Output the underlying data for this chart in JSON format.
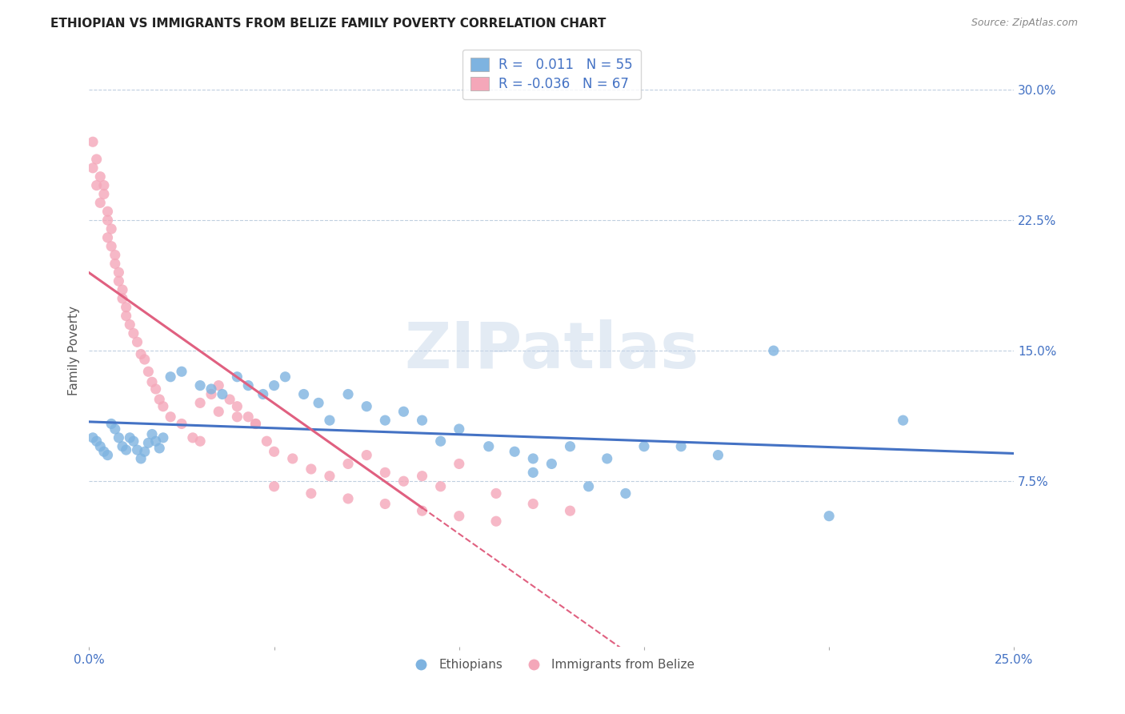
{
  "title": "ETHIOPIAN VS IMMIGRANTS FROM BELIZE FAMILY POVERTY CORRELATION CHART",
  "source": "Source: ZipAtlas.com",
  "ylabel": "Family Poverty",
  "xlim": [
    0.0,
    0.25
  ],
  "ylim": [
    -0.02,
    0.32
  ],
  "ytick_labels_right": [
    "30.0%",
    "22.5%",
    "15.0%",
    "7.5%"
  ],
  "ytick_positions_right": [
    0.3,
    0.225,
    0.15,
    0.075
  ],
  "blue_color": "#7eb3e0",
  "pink_color": "#f4a7b9",
  "blue_line_color": "#4472c4",
  "pink_line_color": "#e06080",
  "r_blue": 0.011,
  "n_blue": 55,
  "r_pink": -0.036,
  "n_pink": 67,
  "watermark": "ZIPatlas",
  "ethiopians_x": [
    0.001,
    0.002,
    0.003,
    0.004,
    0.005,
    0.006,
    0.007,
    0.008,
    0.009,
    0.01,
    0.011,
    0.012,
    0.013,
    0.014,
    0.015,
    0.016,
    0.017,
    0.018,
    0.019,
    0.02,
    0.022,
    0.025,
    0.03,
    0.033,
    0.036,
    0.04,
    0.043,
    0.047,
    0.05,
    0.053,
    0.058,
    0.062,
    0.065,
    0.07,
    0.075,
    0.08,
    0.085,
    0.09,
    0.095,
    0.1,
    0.108,
    0.115,
    0.12,
    0.125,
    0.13,
    0.14,
    0.15,
    0.16,
    0.17,
    0.185,
    0.12,
    0.135,
    0.145,
    0.2,
    0.22
  ],
  "ethiopians_y": [
    0.1,
    0.098,
    0.095,
    0.092,
    0.09,
    0.108,
    0.105,
    0.1,
    0.095,
    0.093,
    0.1,
    0.098,
    0.093,
    0.088,
    0.092,
    0.097,
    0.102,
    0.098,
    0.094,
    0.1,
    0.135,
    0.138,
    0.13,
    0.128,
    0.125,
    0.135,
    0.13,
    0.125,
    0.13,
    0.135,
    0.125,
    0.12,
    0.11,
    0.125,
    0.118,
    0.11,
    0.115,
    0.11,
    0.098,
    0.105,
    0.095,
    0.092,
    0.088,
    0.085,
    0.095,
    0.088,
    0.095,
    0.095,
    0.09,
    0.15,
    0.08,
    0.072,
    0.068,
    0.055,
    0.11
  ],
  "belize_x": [
    0.001,
    0.001,
    0.002,
    0.002,
    0.003,
    0.003,
    0.004,
    0.004,
    0.005,
    0.005,
    0.005,
    0.006,
    0.006,
    0.007,
    0.007,
    0.008,
    0.008,
    0.009,
    0.009,
    0.01,
    0.01,
    0.011,
    0.012,
    0.013,
    0.014,
    0.015,
    0.016,
    0.017,
    0.018,
    0.019,
    0.02,
    0.022,
    0.025,
    0.028,
    0.03,
    0.033,
    0.035,
    0.038,
    0.04,
    0.043,
    0.045,
    0.048,
    0.05,
    0.055,
    0.06,
    0.065,
    0.07,
    0.075,
    0.08,
    0.085,
    0.09,
    0.095,
    0.1,
    0.11,
    0.12,
    0.13,
    0.03,
    0.035,
    0.04,
    0.045,
    0.05,
    0.06,
    0.07,
    0.08,
    0.09,
    0.1,
    0.11
  ],
  "belize_y": [
    0.27,
    0.255,
    0.26,
    0.245,
    0.25,
    0.235,
    0.245,
    0.24,
    0.23,
    0.225,
    0.215,
    0.22,
    0.21,
    0.205,
    0.2,
    0.195,
    0.19,
    0.185,
    0.18,
    0.175,
    0.17,
    0.165,
    0.16,
    0.155,
    0.148,
    0.145,
    0.138,
    0.132,
    0.128,
    0.122,
    0.118,
    0.112,
    0.108,
    0.1,
    0.098,
    0.125,
    0.13,
    0.122,
    0.118,
    0.112,
    0.108,
    0.098,
    0.092,
    0.088,
    0.082,
    0.078,
    0.085,
    0.09,
    0.08,
    0.075,
    0.078,
    0.072,
    0.085,
    0.068,
    0.062,
    0.058,
    0.12,
    0.115,
    0.112,
    0.108,
    0.072,
    0.068,
    0.065,
    0.062,
    0.058,
    0.055,
    0.052
  ]
}
